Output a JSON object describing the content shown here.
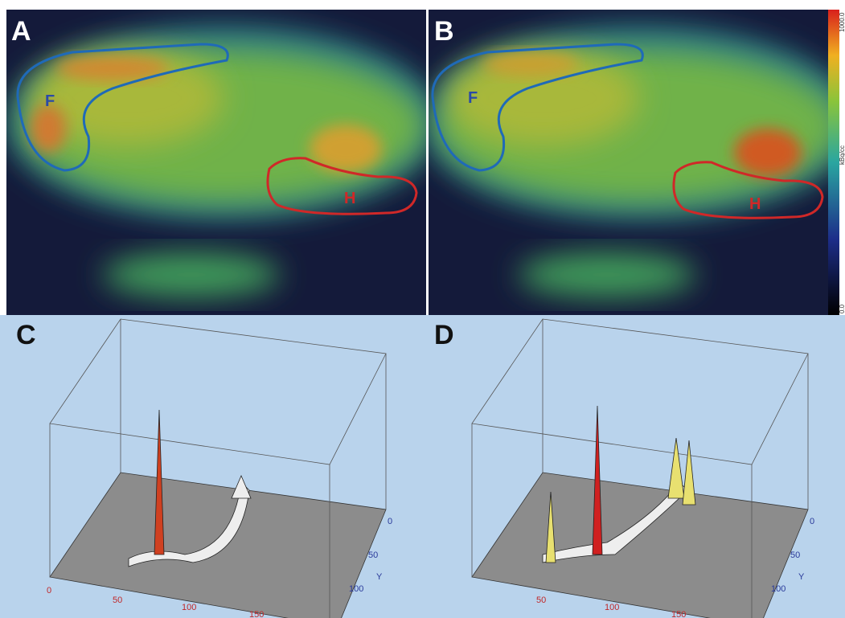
{
  "panels": [
    {
      "label": "A",
      "regions": [
        "F",
        "H"
      ]
    },
    {
      "label": "B",
      "regions": [
        "F",
        "H"
      ]
    },
    {
      "label": "C"
    },
    {
      "label": "D"
    }
  ],
  "colorbar": {
    "max": "1000.0",
    "unit": "kBq/cc",
    "min": "0.0"
  },
  "plots": [
    {
      "x_ticks": [
        "0",
        "50",
        "100",
        "150"
      ],
      "y_ticks": [
        "0",
        "50",
        "100"
      ],
      "y_axis": "Y"
    },
    {
      "x_ticks": [
        "50",
        "100",
        "150"
      ],
      "y_ticks": [
        "0",
        "50",
        "100"
      ],
      "y_axis": "Y"
    }
  ]
}
